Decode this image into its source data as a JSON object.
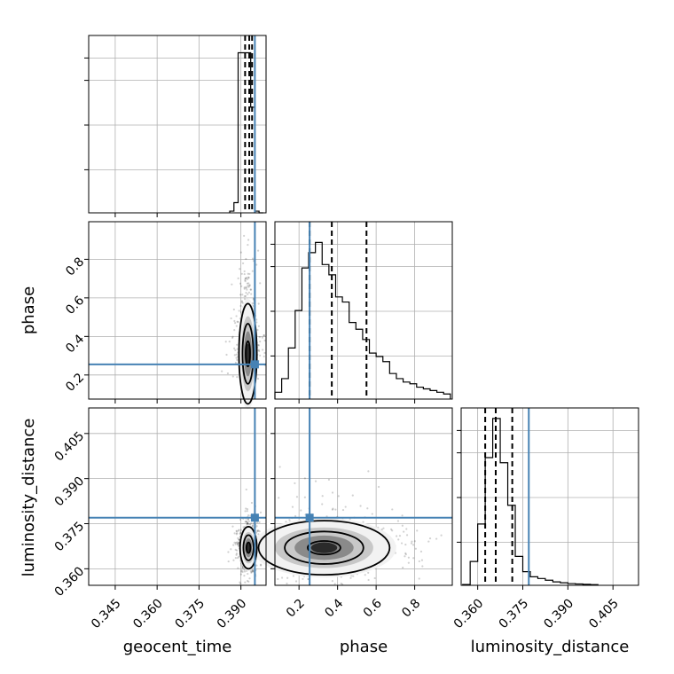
{
  "chart_data": {
    "type": "corner",
    "parameters": [
      "geocent_time",
      "phase",
      "luminosity_distance"
    ],
    "truth": {
      "geocent_time": 0.395,
      "phase": 0.255,
      "luminosity_distance": 0.377
    },
    "truth_color": "#4682b4",
    "ranges": {
      "geocent_time": [
        0.3355,
        0.399
      ],
      "phase": [
        0.075,
        0.995
      ],
      "luminosity_distance": [
        0.3545,
        0.4135
      ]
    },
    "ticks": {
      "geocent_time": [
        0.345,
        0.36,
        0.375,
        0.39
      ],
      "phase": [
        0.2,
        0.4,
        0.6,
        0.8
      ],
      "luminosity_distance": [
        0.36,
        0.375,
        0.39,
        0.405
      ]
    },
    "tick_labels": {
      "geocent_time": [
        "0.345",
        "0.360",
        "0.375",
        "0.390"
      ],
      "phase": [
        "0.2",
        "0.4",
        "0.6",
        "0.8"
      ],
      "luminosity_distance": [
        "0.360",
        "0.375",
        "0.390",
        "0.405"
      ]
    },
    "quantiles": {
      "geocent_time": [
        0.3915,
        0.393,
        0.394
      ],
      "phase": [
        0.255,
        0.37,
        0.55
      ],
      "luminosity_distance": [
        0.3625,
        0.366,
        0.3715
      ]
    },
    "histograms": {
      "geocent_time": {
        "edges": [
          0.386,
          0.3875,
          0.389,
          0.3905,
          0.392,
          0.3935,
          0.395,
          0.3965,
          0.398
        ],
        "counts": [
          0.01,
          0.06,
          0.94,
          0.94,
          0.94,
          0.62,
          0.01,
          0.0
        ]
      },
      "phase": {
        "edges": [
          0.075,
          0.11,
          0.145,
          0.18,
          0.215,
          0.25,
          0.285,
          0.32,
          0.355,
          0.39,
          0.425,
          0.46,
          0.495,
          0.53,
          0.565,
          0.6,
          0.635,
          0.67,
          0.705,
          0.74,
          0.775,
          0.81,
          0.845,
          0.88,
          0.915,
          0.95,
          0.985
        ],
        "counts": [
          0.04,
          0.12,
          0.3,
          0.52,
          0.77,
          0.86,
          0.92,
          0.79,
          0.73,
          0.6,
          0.57,
          0.45,
          0.41,
          0.35,
          0.27,
          0.25,
          0.22,
          0.15,
          0.12,
          0.1,
          0.09,
          0.07,
          0.06,
          0.05,
          0.04,
          0.03
        ]
      },
      "luminosity_distance": {
        "edges": [
          0.355,
          0.3575,
          0.36,
          0.3625,
          0.365,
          0.3675,
          0.37,
          0.3725,
          0.375,
          0.3775,
          0.38,
          0.3825,
          0.385,
          0.3875,
          0.39,
          0.3925,
          0.395,
          0.3975,
          0.4
        ],
        "counts": [
          0.005,
          0.14,
          0.36,
          0.75,
          0.98,
          0.72,
          0.47,
          0.17,
          0.08,
          0.05,
          0.04,
          0.03,
          0.02,
          0.015,
          0.01,
          0.008,
          0.006,
          0.004
        ]
      }
    },
    "density_centers": [
      {
        "x": "geocent_time",
        "y": "phase",
        "cx": 0.3925,
        "cy": 0.31,
        "sx": 0.0016,
        "sy": 0.13
      },
      {
        "x": "geocent_time",
        "y": "luminosity_distance",
        "cx": 0.3927,
        "cy": 0.367,
        "sx": 0.0015,
        "sy": 0.0035
      },
      {
        "x": "phase",
        "y": "luminosity_distance",
        "cx": 0.33,
        "cy": 0.367,
        "sx": 0.17,
        "sy": 0.0045
      }
    ]
  }
}
